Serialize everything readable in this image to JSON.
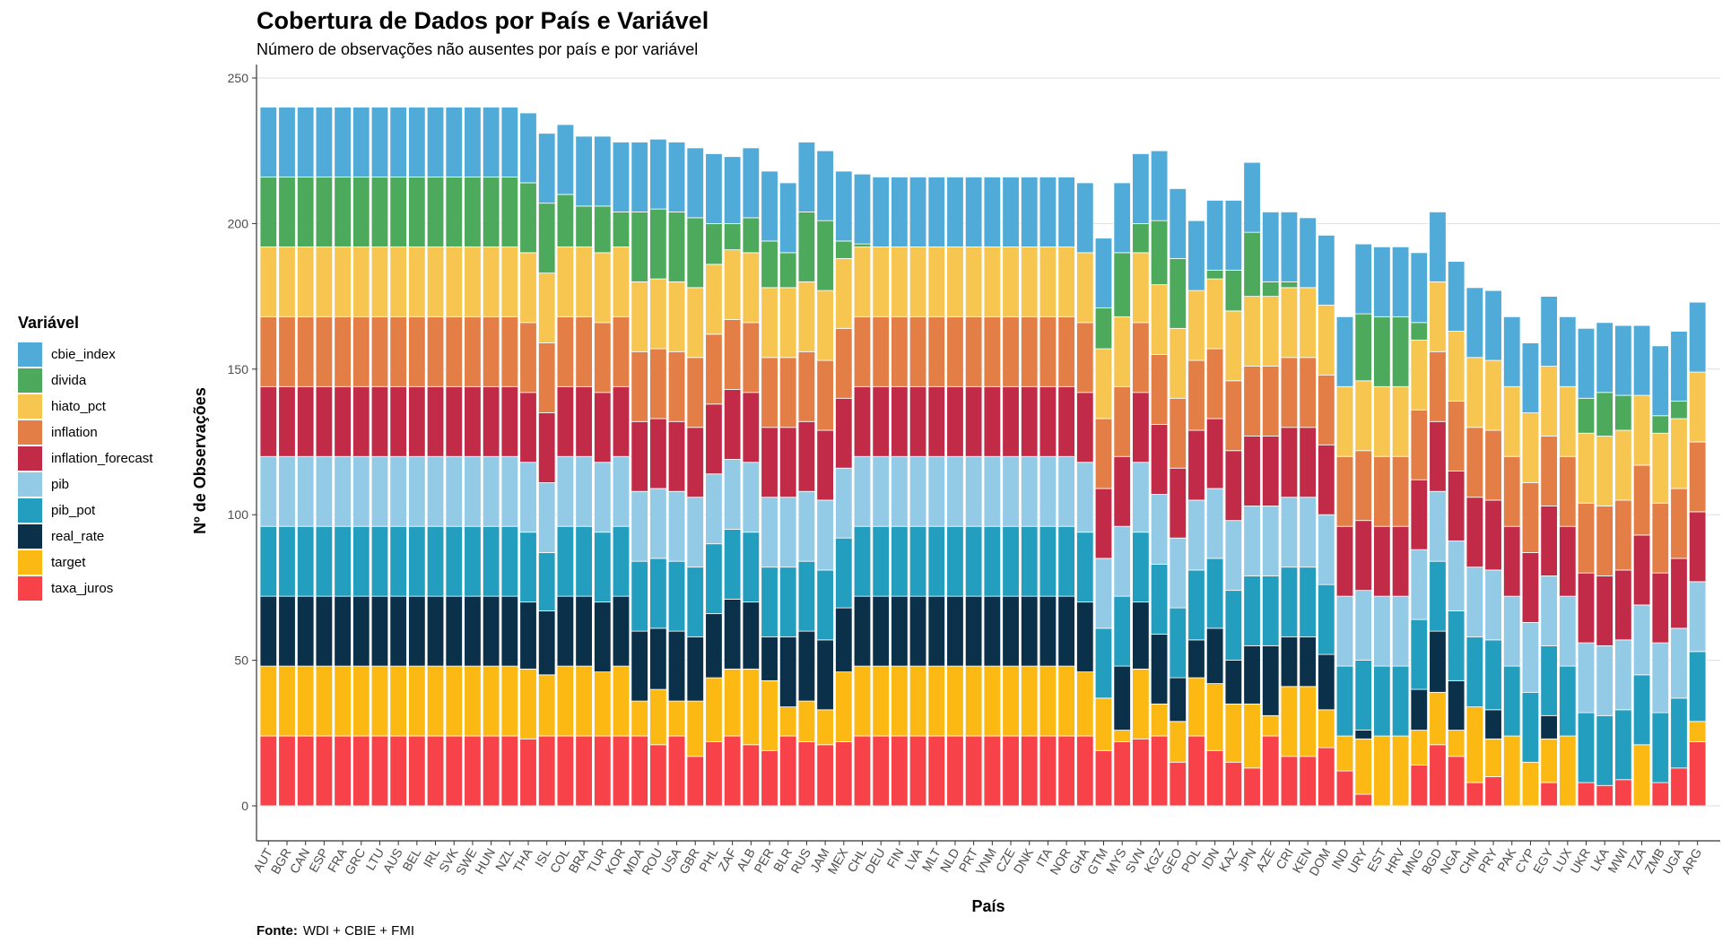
{
  "chart_data": {
    "type": "bar",
    "stacked": true,
    "title": "Cobertura de Dados por País e Variável",
    "subtitle": "Número de observações não ausentes por país e por variável",
    "xlabel": "País",
    "ylabel": "Nº de Observações",
    "ylim": [
      0,
      250
    ],
    "yticks": [
      0,
      50,
      100,
      150,
      200,
      250
    ],
    "grid": "horizontal major",
    "legend": {
      "title": "Variável",
      "position": "left"
    },
    "caption": {
      "label": "Fonte:",
      "text": "WDI + CBIE + FMI"
    },
    "categories": [
      "AUT",
      "BGR",
      "CAN",
      "ESP",
      "FRA",
      "GRC",
      "LTU",
      "AUS",
      "BEL",
      "IRL",
      "SVK",
      "SWE",
      "HUN",
      "NZL",
      "THA",
      "ISL",
      "COL",
      "BRA",
      "TUR",
      "KOR",
      "MDA",
      "ROU",
      "USA",
      "GBR",
      "PHL",
      "ZAF",
      "ALB",
      "PER",
      "BLR",
      "RUS",
      "JAM",
      "MEX",
      "CHL",
      "DEU",
      "FIN",
      "LVA",
      "MLT",
      "NLD",
      "PRT",
      "VNM",
      "CZE",
      "DNK",
      "ITA",
      "NOR",
      "GHA",
      "GTM",
      "MYS",
      "SVN",
      "KGZ",
      "GEO",
      "POL",
      "IDN",
      "KAZ",
      "JPN",
      "AZE",
      "CRI",
      "KEN",
      "DOM",
      "IND",
      "URY",
      "EST",
      "HRV",
      "MNG",
      "BGD",
      "NGA",
      "CHN",
      "PRY",
      "PAK",
      "CYP",
      "EGY",
      "LUX",
      "UKR",
      "LKA",
      "MWI",
      "TZA",
      "ZMB",
      "UGA",
      "ARG"
    ],
    "series": [
      {
        "name": "taxa_juros",
        "color": "#F8424A",
        "values": [
          24,
          24,
          24,
          24,
          24,
          24,
          24,
          24,
          24,
          24,
          24,
          24,
          24,
          24,
          23,
          24,
          24,
          24,
          24,
          24,
          24,
          21,
          24,
          17,
          22,
          24,
          21,
          19,
          24,
          22,
          21,
          22,
          24,
          24,
          24,
          24,
          24,
          24,
          24,
          24,
          24,
          24,
          24,
          24,
          24,
          19,
          22,
          23,
          24,
          15,
          24,
          19,
          15,
          13,
          24,
          17,
          17,
          20,
          12,
          4,
          0,
          0,
          14,
          21,
          17,
          8,
          10,
          0,
          0,
          8,
          0,
          8,
          7,
          9,
          0,
          8,
          13,
          22
        ]
      },
      {
        "name": "target",
        "color": "#FDB913",
        "values": [
          24,
          24,
          24,
          24,
          24,
          24,
          24,
          24,
          24,
          24,
          24,
          24,
          24,
          24,
          24,
          21,
          24,
          24,
          22,
          24,
          12,
          19,
          12,
          19,
          22,
          23,
          26,
          24,
          10,
          14,
          12,
          24,
          24,
          24,
          24,
          24,
          24,
          24,
          24,
          24,
          24,
          24,
          24,
          24,
          22,
          18,
          4,
          24,
          11,
          14,
          20,
          23,
          20,
          22,
          7,
          24,
          24,
          13,
          12,
          19,
          24,
          24,
          12,
          18,
          9,
          26,
          13,
          24,
          15,
          15,
          24,
          0,
          0,
          0,
          21,
          0,
          0,
          7
        ]
      },
      {
        "name": "real_rate",
        "color": "#0B3049",
        "values": [
          24,
          24,
          24,
          24,
          24,
          24,
          24,
          24,
          24,
          24,
          24,
          24,
          24,
          24,
          23,
          22,
          24,
          24,
          24,
          24,
          24,
          21,
          24,
          22,
          22,
          24,
          23,
          15,
          24,
          24,
          24,
          22,
          24,
          24,
          24,
          24,
          24,
          24,
          24,
          24,
          24,
          24,
          24,
          24,
          24,
          0,
          22,
          23,
          24,
          15,
          13,
          19,
          15,
          20,
          24,
          17,
          17,
          19,
          0,
          3,
          0,
          0,
          14,
          21,
          17,
          0,
          10,
          0,
          0,
          8,
          0,
          0,
          0,
          0,
          0,
          0,
          0,
          0
        ]
      },
      {
        "name": "pib_pot",
        "color": "#239EBF",
        "values": [
          24,
          24,
          24,
          24,
          24,
          24,
          24,
          24,
          24,
          24,
          24,
          24,
          24,
          24,
          24,
          20,
          24,
          24,
          24,
          24,
          24,
          24,
          24,
          24,
          24,
          24,
          24,
          24,
          24,
          24,
          24,
          24,
          24,
          24,
          24,
          24,
          24,
          24,
          24,
          24,
          24,
          24,
          24,
          24,
          24,
          24,
          24,
          24,
          24,
          24,
          24,
          24,
          24,
          24,
          24,
          24,
          24,
          24,
          24,
          24,
          24,
          24,
          24,
          24,
          24,
          24,
          24,
          24,
          24,
          24,
          24,
          24,
          24,
          24,
          24,
          24,
          24,
          24
        ]
      },
      {
        "name": "pib",
        "color": "#93CAE6",
        "values": [
          24,
          24,
          24,
          24,
          24,
          24,
          24,
          24,
          24,
          24,
          24,
          24,
          24,
          24,
          24,
          24,
          24,
          24,
          24,
          24,
          24,
          24,
          24,
          24,
          24,
          24,
          24,
          24,
          24,
          24,
          24,
          24,
          24,
          24,
          24,
          24,
          24,
          24,
          24,
          24,
          24,
          24,
          24,
          24,
          24,
          24,
          24,
          24,
          24,
          24,
          24,
          24,
          24,
          24,
          24,
          24,
          24,
          24,
          24,
          24,
          24,
          24,
          24,
          24,
          24,
          24,
          24,
          24,
          24,
          24,
          24,
          24,
          24,
          24,
          24,
          24,
          24,
          24
        ]
      },
      {
        "name": "inflation_forecast",
        "color": "#C12B48",
        "values": [
          24,
          24,
          24,
          24,
          24,
          24,
          24,
          24,
          24,
          24,
          24,
          24,
          24,
          24,
          24,
          24,
          24,
          24,
          24,
          24,
          24,
          24,
          24,
          24,
          24,
          24,
          24,
          24,
          24,
          24,
          24,
          24,
          24,
          24,
          24,
          24,
          24,
          24,
          24,
          24,
          24,
          24,
          24,
          24,
          24,
          24,
          24,
          24,
          24,
          24,
          24,
          24,
          24,
          24,
          24,
          24,
          24,
          24,
          24,
          24,
          24,
          24,
          24,
          24,
          24,
          24,
          24,
          24,
          24,
          24,
          24,
          24,
          24,
          24,
          24,
          24,
          24,
          24
        ]
      },
      {
        "name": "inflation",
        "color": "#E37E46",
        "values": [
          24,
          24,
          24,
          24,
          24,
          24,
          24,
          24,
          24,
          24,
          24,
          24,
          24,
          24,
          24,
          24,
          24,
          24,
          24,
          24,
          24,
          24,
          24,
          24,
          24,
          24,
          24,
          24,
          24,
          24,
          24,
          24,
          24,
          24,
          24,
          24,
          24,
          24,
          24,
          24,
          24,
          24,
          24,
          24,
          24,
          24,
          24,
          24,
          24,
          24,
          24,
          24,
          24,
          24,
          24,
          24,
          24,
          24,
          24,
          24,
          24,
          24,
          24,
          24,
          24,
          24,
          24,
          24,
          24,
          24,
          24,
          24,
          24,
          24,
          24,
          24,
          24,
          24
        ]
      },
      {
        "name": "hiato_pct",
        "color": "#F6C651",
        "values": [
          24,
          24,
          24,
          24,
          24,
          24,
          24,
          24,
          24,
          24,
          24,
          24,
          24,
          24,
          24,
          24,
          24,
          24,
          24,
          24,
          24,
          24,
          24,
          24,
          24,
          24,
          24,
          24,
          24,
          24,
          24,
          24,
          24,
          24,
          24,
          24,
          24,
          24,
          24,
          24,
          24,
          24,
          24,
          24,
          24,
          24,
          24,
          24,
          24,
          24,
          24,
          24,
          24,
          24,
          24,
          24,
          24,
          24,
          24,
          24,
          24,
          24,
          24,
          24,
          24,
          24,
          24,
          24,
          24,
          24,
          24,
          24,
          24,
          24,
          24,
          24,
          24,
          24
        ]
      },
      {
        "name": "divida",
        "color": "#4DAA5C",
        "values": [
          24,
          24,
          24,
          24,
          24,
          24,
          24,
          24,
          24,
          24,
          24,
          24,
          24,
          24,
          24,
          24,
          18,
          14,
          16,
          12,
          24,
          24,
          24,
          24,
          14,
          9,
          12,
          16,
          12,
          24,
          24,
          6,
          1,
          0,
          0,
          0,
          0,
          0,
          0,
          0,
          0,
          0,
          0,
          0,
          0,
          14,
          22,
          10,
          22,
          24,
          0,
          3,
          14,
          22,
          5,
          2,
          0,
          0,
          0,
          23,
          24,
          24,
          6,
          0,
          0,
          0,
          0,
          0,
          0,
          0,
          0,
          12,
          15,
          12,
          0,
          6,
          6,
          0
        ]
      },
      {
        "name": "cbie_index",
        "color": "#51ABD8",
        "values": [
          24,
          24,
          24,
          24,
          24,
          24,
          24,
          24,
          24,
          24,
          24,
          24,
          24,
          24,
          24,
          24,
          24,
          24,
          24,
          24,
          24,
          24,
          24,
          24,
          24,
          23,
          24,
          24,
          24,
          24,
          24,
          24,
          24,
          24,
          24,
          24,
          24,
          24,
          24,
          24,
          24,
          24,
          24,
          24,
          24,
          24,
          24,
          24,
          24,
          24,
          24,
          24,
          24,
          24,
          24,
          24,
          24,
          24,
          24,
          24,
          24,
          24,
          24,
          24,
          24,
          24,
          24,
          24,
          24,
          24,
          24,
          24,
          24,
          24,
          24,
          24,
          24,
          24
        ]
      }
    ]
  }
}
